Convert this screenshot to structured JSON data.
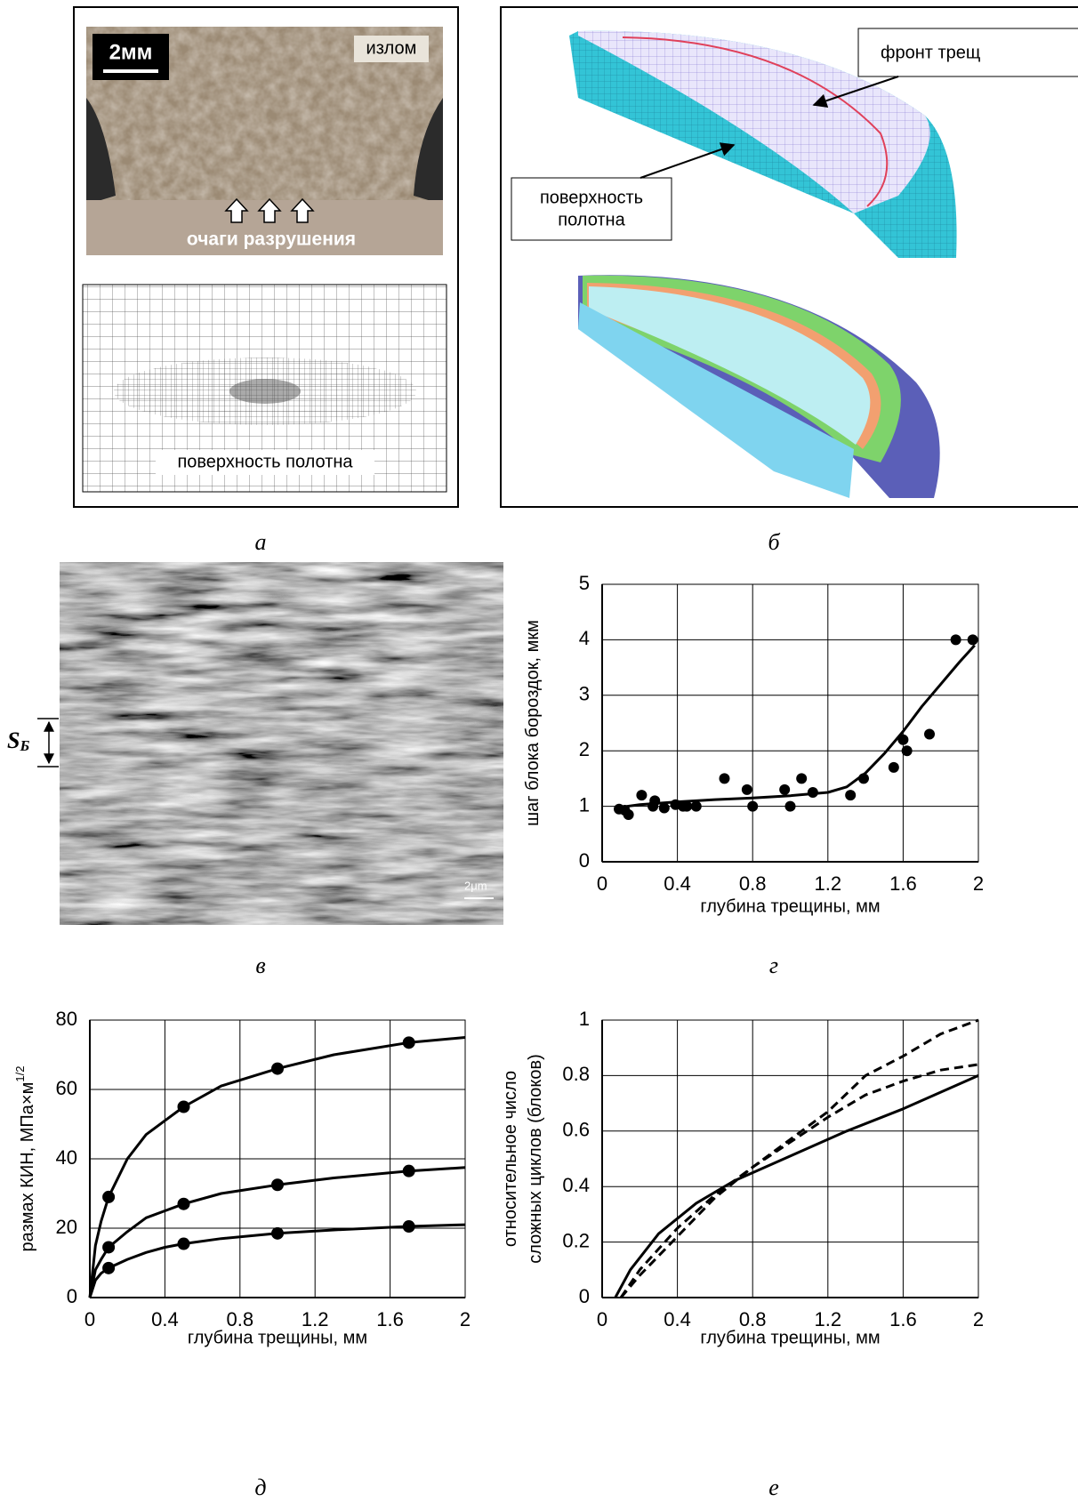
{
  "panels": {
    "a": {
      "scale_bar": "2мм",
      "fracture": "излом",
      "origins": "очаги разрушения",
      "surface": "поверхность полотна",
      "caption": "а"
    },
    "b": {
      "crack_front": "фронт трещ",
      "surface": [
        "поверхность",
        "полотна"
      ],
      "caption": "б"
    },
    "v": {
      "spacing_symbol": "S",
      "spacing_subscript": "Б",
      "scale": "2μm",
      "caption": "в"
    }
  },
  "chart_data": [
    {
      "type": "scatter",
      "caption": "г",
      "xlabel": "глубина трещины, мм",
      "ylabel": [
        "шаг блока бороздок, мкм"
      ],
      "xlim": [
        0,
        2
      ],
      "ylim": [
        0,
        5
      ],
      "xticks": [
        0,
        0.4,
        0.8,
        1.2,
        1.6,
        2
      ],
      "yticks": [
        0,
        1,
        2,
        3,
        4,
        5
      ],
      "grid": true,
      "series": [
        {
          "style": "points",
          "color": "#000000",
          "x": [
            0.09,
            0.12,
            0.14,
            0.21,
            0.27,
            0.28,
            0.33,
            0.39,
            0.43,
            0.45,
            0.5,
            0.65,
            0.77,
            0.8,
            0.97,
            1.0,
            1.06,
            1.12,
            1.32,
            1.39,
            1.55,
            1.6,
            1.62,
            1.74,
            1.88,
            1.97
          ],
          "values": [
            0.95,
            0.93,
            0.85,
            1.2,
            1.0,
            1.1,
            0.97,
            1.03,
            1.0,
            1.0,
            1.0,
            1.5,
            1.3,
            1.0,
            1.3,
            1.0,
            1.5,
            1.25,
            1.2,
            1.5,
            1.7,
            2.2,
            2.0,
            2.3,
            4.0,
            4.0
          ]
        },
        {
          "style": "solid",
          "color": "#000000",
          "x": [
            0.07,
            0.2,
            0.4,
            0.6,
            0.8,
            1.0,
            1.2,
            1.3,
            1.4,
            1.5,
            1.6,
            1.7,
            1.8,
            1.9,
            1.98
          ],
          "values": [
            0.97,
            1.03,
            1.08,
            1.12,
            1.15,
            1.19,
            1.25,
            1.35,
            1.6,
            1.95,
            2.35,
            2.8,
            3.2,
            3.6,
            3.9
          ]
        }
      ]
    },
    {
      "type": "line",
      "caption": "д",
      "xlabel": "глубина трещины, мм",
      "ylabel": [
        "размах КИН, МПа×м"
      ],
      "ylabel_sup": "1/2",
      "xlim": [
        0,
        2
      ],
      "ylim": [
        0,
        80
      ],
      "xticks": [
        0,
        0.4,
        0.8,
        1.2,
        1.6,
        2
      ],
      "yticks": [
        0,
        20,
        40,
        60,
        80
      ],
      "grid": true,
      "series": [
        {
          "style": "solid",
          "color": "#000000",
          "x": [
            0,
            0.03,
            0.06,
            0.1,
            0.2,
            0.3,
            0.4,
            0.5,
            0.7,
            1.0,
            1.3,
            1.7,
            2.0
          ],
          "values": [
            0,
            15,
            22,
            29,
            40,
            47,
            51,
            55,
            61,
            66,
            70,
            73.5,
            75
          ],
          "markers": {
            "x": [
              0.1,
              0.5,
              1.0,
              1.7
            ],
            "values": [
              29,
              55,
              66,
              73.5
            ]
          }
        },
        {
          "style": "solid",
          "color": "#000000",
          "x": [
            0,
            0.03,
            0.06,
            0.1,
            0.2,
            0.3,
            0.4,
            0.5,
            0.7,
            1.0,
            1.3,
            1.7,
            2.0
          ],
          "values": [
            0,
            8,
            11,
            14.5,
            19,
            23,
            25,
            27,
            30,
            32.5,
            34.5,
            36.5,
            37.5
          ],
          "markers": {
            "x": [
              0.1,
              0.5,
              1.0,
              1.7
            ],
            "values": [
              14.5,
              27,
              32.5,
              36.5
            ]
          }
        },
        {
          "style": "solid",
          "color": "#000000",
          "x": [
            0,
            0.03,
            0.06,
            0.1,
            0.2,
            0.3,
            0.4,
            0.5,
            0.7,
            1.0,
            1.3,
            1.7,
            2.0
          ],
          "values": [
            0,
            5,
            7,
            8.5,
            11,
            13,
            14.5,
            15.5,
            17,
            18.5,
            19.5,
            20.5,
            21
          ],
          "markers": {
            "x": [
              0.1,
              0.5,
              1.0,
              1.7
            ],
            "values": [
              8.5,
              15.5,
              18.5,
              20.5
            ]
          }
        }
      ]
    },
    {
      "type": "line",
      "caption": "е",
      "xlabel": "глубина трещины, мм",
      "ylabel": [
        "относительное число",
        "сложных циклов (блоков)"
      ],
      "xlim": [
        0,
        2
      ],
      "ylim": [
        0,
        1
      ],
      "xticks": [
        0,
        0.4,
        0.8,
        1.2,
        1.6,
        2
      ],
      "yticks": [
        0,
        0.2,
        0.4,
        0.6,
        0.8,
        1
      ],
      "grid": true,
      "series": [
        {
          "style": "solid",
          "color": "#000000",
          "x": [
            0.07,
            0.15,
            0.3,
            0.5,
            0.7,
            1.0,
            1.3,
            1.6,
            2.0
          ],
          "values": [
            0,
            0.1,
            0.23,
            0.34,
            0.42,
            0.51,
            0.6,
            0.68,
            0.8
          ]
        },
        {
          "style": "dashed",
          "color": "#000000",
          "x": [
            0.1,
            0.2,
            0.4,
            0.6,
            0.8,
            1.0,
            1.2,
            1.4,
            1.6,
            1.8,
            2.0
          ],
          "values": [
            0,
            0.1,
            0.25,
            0.37,
            0.47,
            0.57,
            0.67,
            0.8,
            0.87,
            0.95,
            1.0
          ]
        },
        {
          "style": "dashed",
          "color": "#000000",
          "x": [
            0.1,
            0.2,
            0.4,
            0.6,
            0.8,
            1.0,
            1.2,
            1.4,
            1.6,
            1.8,
            2.0
          ],
          "values": [
            0,
            0.08,
            0.22,
            0.36,
            0.47,
            0.56,
            0.65,
            0.73,
            0.78,
            0.82,
            0.84
          ]
        }
      ]
    }
  ]
}
